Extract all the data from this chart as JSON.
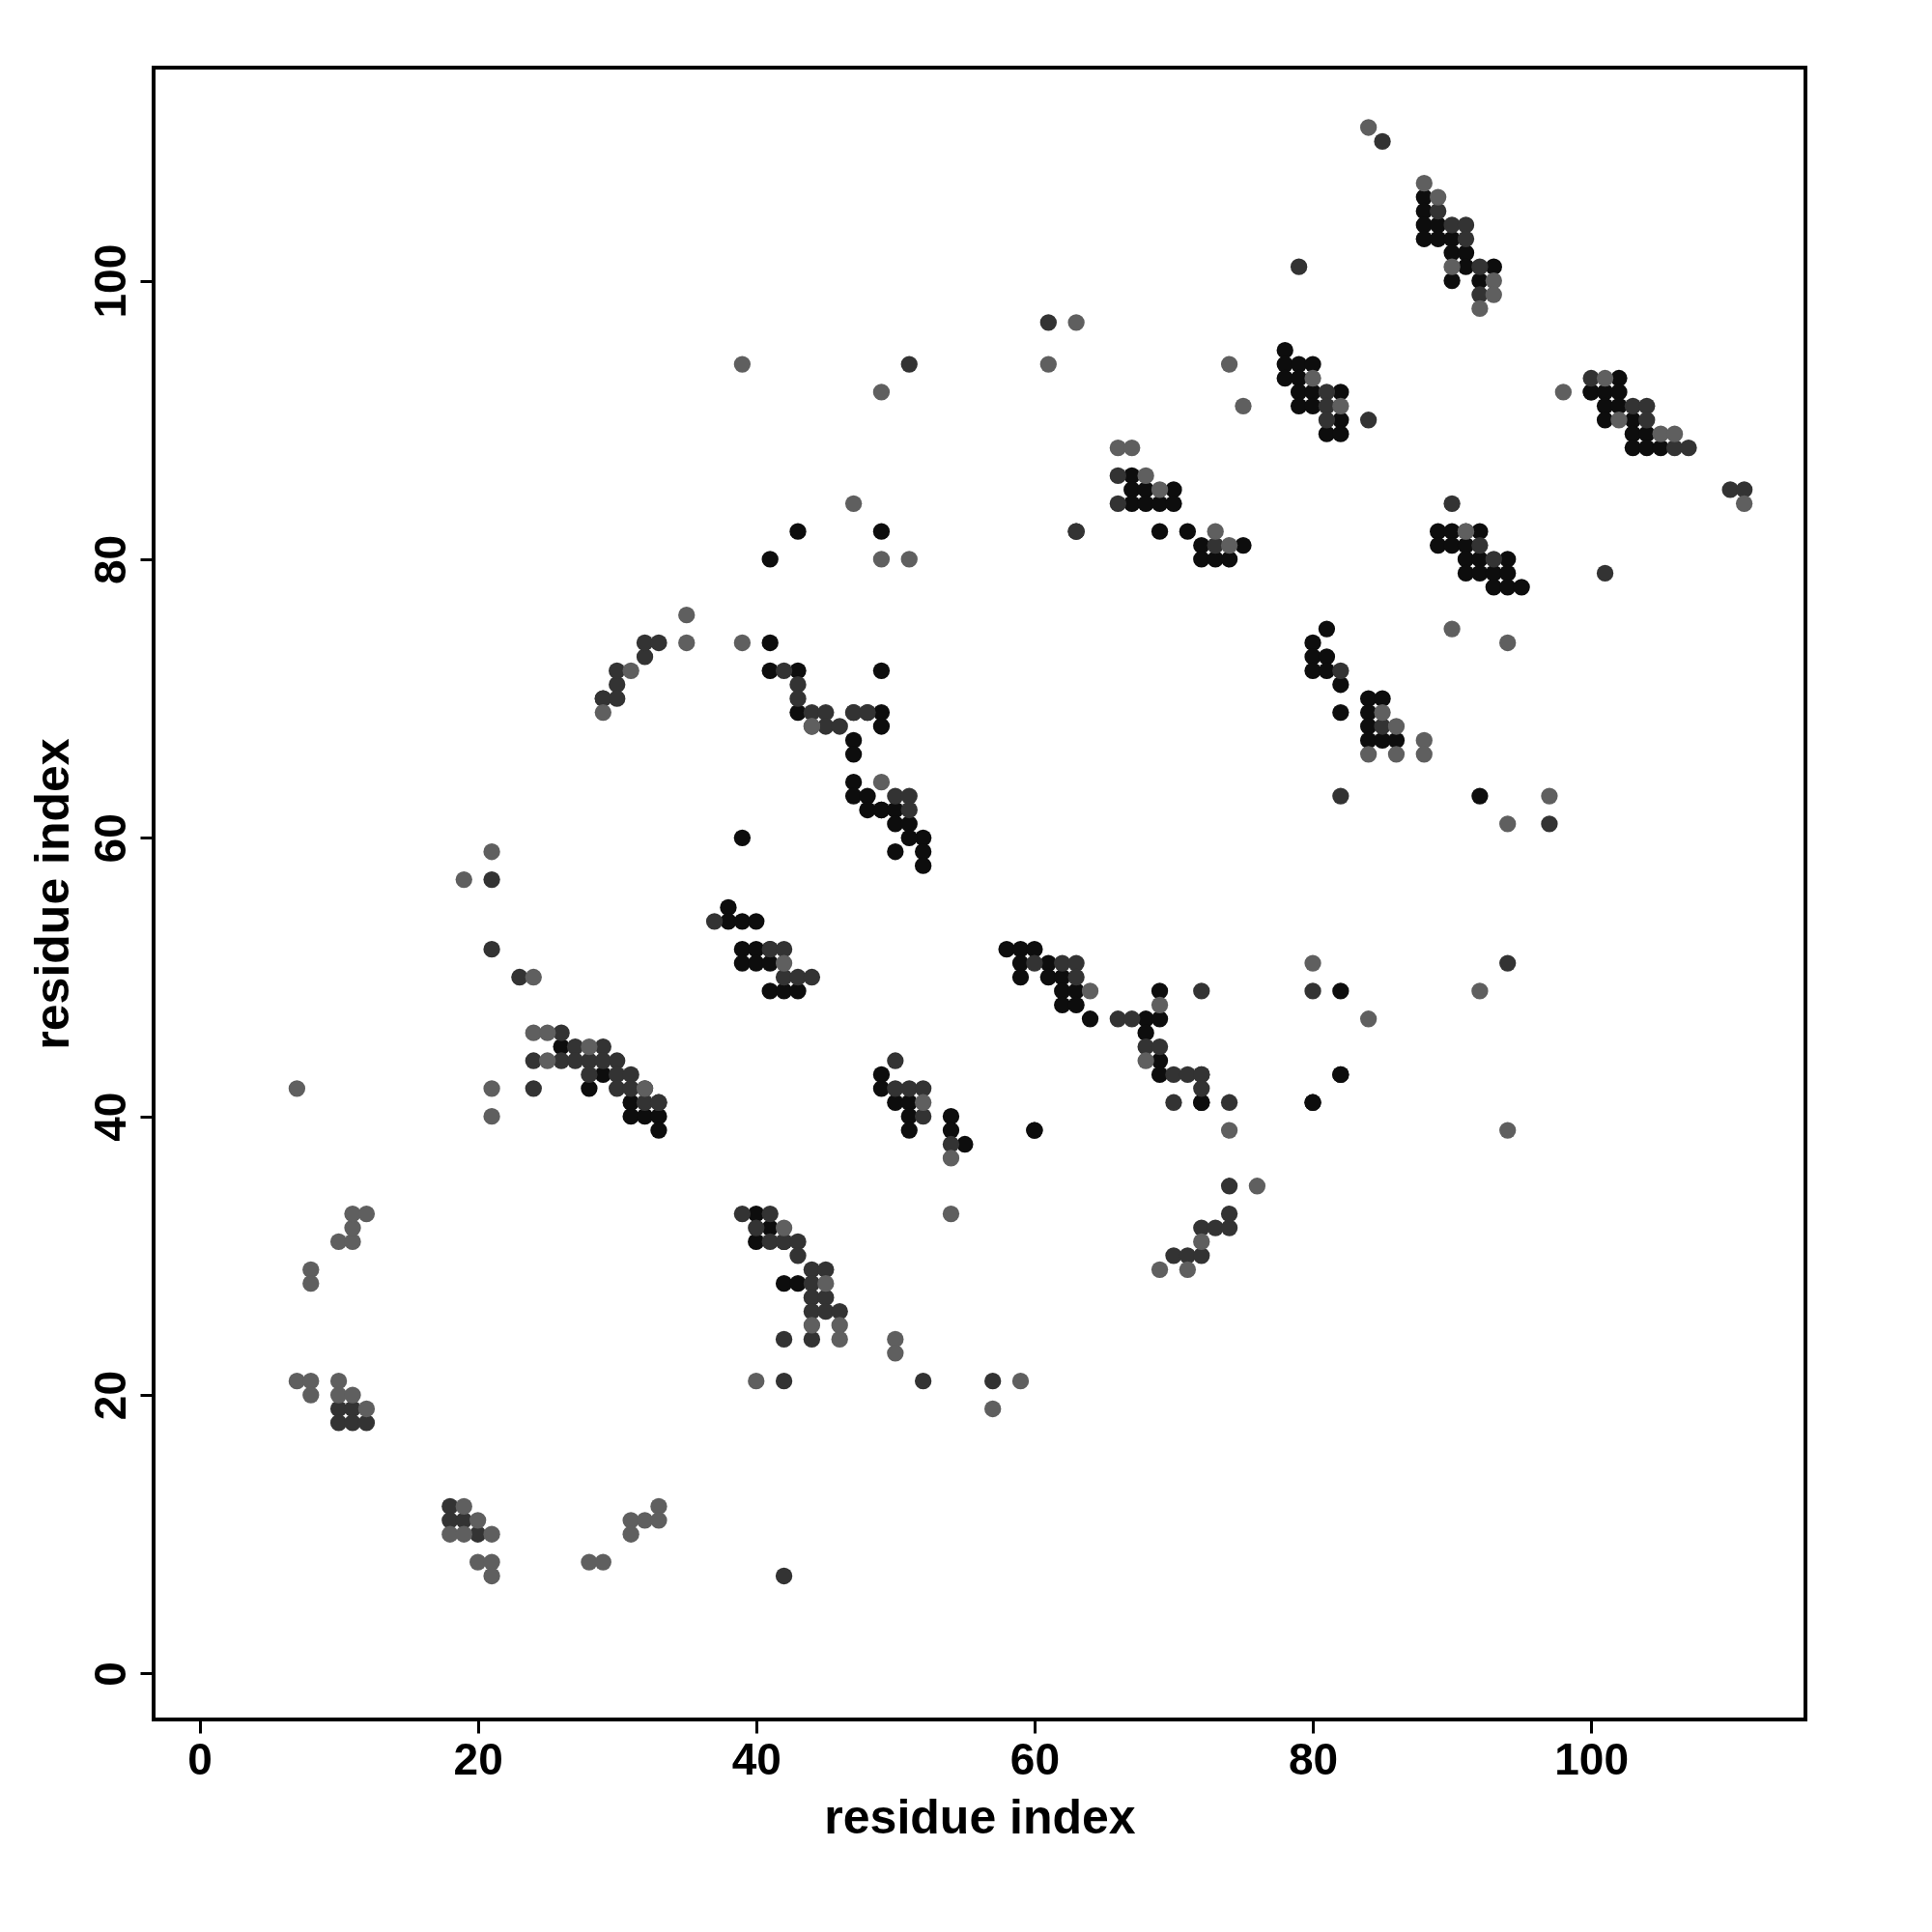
{
  "chart_data": {
    "type": "scatter",
    "xlabel": "residue index",
    "ylabel": "residue index",
    "xlim": [
      -3.3,
      115.4
    ],
    "ylim": [
      -3.3,
      115.3
    ],
    "xticks": [
      0,
      20,
      40,
      60,
      80,
      100
    ],
    "yticks": [
      0,
      20,
      40,
      60,
      80,
      100
    ],
    "grid": false,
    "marker": "circle",
    "series": [
      {
        "color": "#0d0d0d",
        "x": [
          26,
          29,
          28,
          31,
          31,
          32,
          33,
          33,
          38,
          38,
          39,
          40,
          39,
          40,
          39,
          40,
          41,
          41,
          41,
          42,
          43,
          39,
          40,
          41,
          40,
          42,
          42,
          43,
          41,
          41,
          43,
          43,
          47,
          48,
          49,
          49,
          47,
          47,
          47,
          47,
          48,
          49,
          48,
          49,
          50,
          50,
          51,
          52,
          51,
          50,
          52,
          52,
          41,
          43,
          49,
          49,
          49,
          49,
          50,
          51,
          51,
          51,
          54,
          54,
          55,
          60,
          58,
          59,
          60,
          59,
          61,
          59,
          61,
          62,
          62,
          63,
          62,
          63,
          64,
          68,
          69,
          69,
          68,
          69,
          69,
          72,
          72,
          72,
          80,
          82,
          63,
          67,
          67,
          67,
          68,
          68,
          69,
          70,
          70,
          69,
          71,
          72,
          75,
          72,
          73,
          74,
          78,
          78,
          79,
          80,
          78,
          79,
          79,
          80,
          82,
          79,
          80,
          82,
          81,
          82,
          88,
          88,
          88,
          89,
          88,
          89,
          90,
          90,
          91,
          91,
          93,
          90,
          92,
          100,
          102,
          100,
          101,
          102,
          101,
          102,
          101,
          103,
          103,
          104,
          103,
          104,
          105,
          89,
          90,
          92,
          89,
          90,
          91,
          91,
          92,
          94,
          91,
          92,
          93,
          94,
          93,
          94,
          95,
          80,
          81,
          80,
          81,
          80,
          81,
          82,
          82,
          84,
          85,
          84,
          84,
          84,
          85,
          86,
          92,
          82,
          80,
          82,
          60
        ],
        "values": [
          45,
          43,
          42,
          41,
          40,
          40,
          40,
          39,
          55,
          54,
          54,
          54,
          52,
          52,
          51,
          51,
          51,
          49,
          52,
          49,
          49,
          60,
          33,
          32,
          31,
          31,
          28,
          28,
          74,
          72,
          72,
          69,
          69,
          69,
          69,
          68,
          67,
          66,
          64,
          63,
          63,
          62,
          62,
          62,
          62,
          61,
          61,
          60,
          60,
          59,
          59,
          58,
          80,
          82,
          82,
          72,
          43,
          42,
          41,
          41,
          40,
          39,
          40,
          39,
          38,
          39,
          52,
          52,
          52,
          51,
          51,
          50,
          50,
          50,
          49,
          49,
          48,
          48,
          47,
          47,
          47,
          49,
          46,
          44,
          43,
          43,
          41,
          41,
          41,
          43,
          82,
          86,
          85,
          84,
          85,
          84,
          84,
          85,
          84,
          82,
          82,
          81,
          81,
          80,
          80,
          80,
          95,
          94,
          94,
          94,
          93,
          93,
          92,
          92,
          92,
          91,
          91,
          90,
          89,
          89,
          106,
          105,
          104,
          104,
          103,
          103,
          103,
          102,
          102,
          101,
          101,
          100,
          100,
          92,
          93,
          92,
          92,
          92,
          91,
          91,
          90,
          90,
          89,
          89,
          88,
          88,
          88,
          82,
          82,
          82,
          81,
          81,
          81,
          80,
          80,
          80,
          79,
          79,
          79,
          79,
          78,
          78,
          78,
          74,
          75,
          73,
          73,
          72,
          72,
          71,
          69,
          70,
          70,
          69,
          68,
          67,
          67,
          67,
          63,
          49,
          41,
          43,
          39
        ]
      },
      {
        "color": "#333333",
        "x": [
          10,
          10,
          11,
          11,
          12,
          18,
          18,
          19,
          20,
          42,
          21,
          21,
          23,
          26,
          24,
          26,
          24,
          27,
          29,
          27,
          28,
          29,
          30,
          28,
          30,
          31,
          30,
          31,
          32,
          32,
          33,
          33,
          29,
          30,
          29,
          30,
          30,
          32,
          32,
          33,
          42,
          43,
          43,
          44,
          45,
          45,
          46,
          47,
          48,
          50,
          51,
          51,
          37,
          41,
          42,
          42,
          43,
          44,
          39,
          41,
          40,
          41,
          42,
          43,
          43,
          44,
          45,
          44,
          44,
          45,
          44,
          45,
          46,
          42,
          44,
          42,
          52,
          50,
          50,
          51,
          52,
          52,
          54,
          57,
          51,
          60,
          62,
          63,
          63,
          66,
          67,
          68,
          69,
          70,
          71,
          72,
          72,
          74,
          70,
          70,
          71,
          72,
          72,
          73,
          74,
          74,
          74,
          61,
          66,
          66,
          72,
          73,
          79,
          81,
          81,
          81,
          84,
          85,
          89,
          90,
          91,
          91,
          92,
          92,
          100,
          103,
          104,
          104,
          106,
          107,
          110,
          111,
          90,
          91,
          92,
          93,
          101,
          82,
          85,
          82,
          97,
          80,
          94,
          63
        ],
        "values": [
          19,
          18,
          19,
          18,
          18,
          12,
          11,
          11,
          10,
          7,
          57,
          52,
          50,
          46,
          44,
          44,
          42,
          45,
          45,
          44,
          44,
          44,
          44,
          43,
          43,
          43,
          42,
          42,
          42,
          41,
          41,
          41,
          70,
          71,
          70,
          70,
          72,
          73,
          74,
          74,
          72,
          71,
          70,
          69,
          69,
          68,
          68,
          69,
          69,
          63,
          63,
          62,
          54,
          52,
          52,
          50,
          50,
          50,
          33,
          33,
          32,
          31,
          31,
          31,
          30,
          29,
          29,
          28,
          27,
          27,
          26,
          26,
          26,
          24,
          24,
          21,
          21,
          44,
          42,
          42,
          42,
          40,
          38,
          21,
          94,
          51,
          51,
          51,
          50,
          47,
          47,
          45,
          45,
          43,
          43,
          43,
          42,
          41,
          41,
          30,
          30,
          30,
          32,
          32,
          32,
          33,
          35,
          97,
          86,
          84,
          49,
          81,
          101,
          92,
          91,
          90,
          90,
          110,
          105,
          104,
          104,
          103,
          101,
          99,
          93,
          91,
          91,
          90,
          88,
          88,
          85,
          85,
          84,
          82,
          81,
          80,
          79,
          63,
          68,
          72,
          61,
          49,
          51,
          82
        ]
      },
      {
        "color": "#5f5f5f",
        "x": [
          7,
          8,
          8,
          10,
          11,
          11,
          11,
          12,
          7,
          8,
          8,
          10,
          10,
          11,
          12,
          19,
          18,
          19,
          20,
          21,
          20,
          21,
          21,
          28,
          29,
          31,
          31,
          32,
          33,
          33,
          19,
          21,
          21,
          21,
          24,
          24,
          25,
          25,
          28,
          32,
          29,
          31,
          35,
          35,
          39,
          39,
          42,
          44,
          46,
          44,
          46,
          45,
          40,
          50,
          50,
          54,
          54,
          57,
          59,
          42,
          52,
          49,
          44,
          47,
          49,
          51,
          49,
          64,
          69,
          68,
          69,
          71,
          72,
          74,
          76,
          63,
          61,
          66,
          67,
          68,
          69,
          73,
          74,
          74,
          75,
          80,
          82,
          84,
          88,
          89,
          90,
          93,
          93,
          92,
          98,
          101,
          102,
          105,
          106,
          111,
          90,
          91,
          94,
          85,
          86,
          84,
          86,
          88,
          88,
          94,
          97,
          80,
          84,
          92,
          94
        ],
        "values": [
          42,
          29,
          28,
          31,
          31,
          32,
          33,
          33,
          21,
          21,
          20,
          21,
          20,
          20,
          19,
          12,
          10,
          10,
          11,
          10,
          8,
          8,
          7,
          8,
          8,
          11,
          10,
          11,
          12,
          11,
          57,
          59,
          42,
          40,
          50,
          46,
          46,
          44,
          45,
          42,
          69,
          72,
          76,
          74,
          94,
          74,
          32,
          68,
          25,
          25,
          24,
          28,
          21,
          24,
          23,
          37,
          33,
          19,
          21,
          51,
          41,
          92,
          68,
          84,
          80,
          80,
          64,
          49,
          48,
          44,
          29,
          29,
          31,
          39,
          35,
          97,
          94,
          88,
          88,
          86,
          85,
          82,
          81,
          94,
          91,
          93,
          91,
          111,
          107,
          106,
          101,
          100,
          99,
          98,
          92,
          93,
          90,
          89,
          89,
          84,
          75,
          82,
          74,
          69,
          68,
          66,
          66,
          67,
          66,
          61,
          63,
          51,
          47,
          49,
          39
        ]
      }
    ]
  }
}
